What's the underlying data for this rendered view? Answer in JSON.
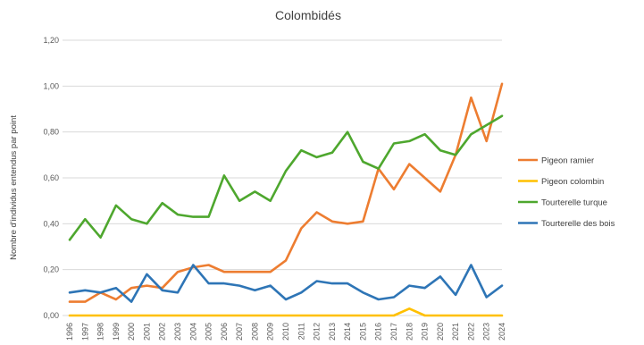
{
  "chart_data": {
    "type": "line",
    "title": "Colombidés",
    "xlabel": "",
    "ylabel": "Nombre d'individus entendus par point",
    "ylim": [
      0,
      1.2
    ],
    "yticks": [
      "0,00",
      "0,20",
      "0,40",
      "0,60",
      "0,80",
      "1,00",
      "1,20"
    ],
    "grid": true,
    "legend_position": "right",
    "x": [
      "1996",
      "1997",
      "1998",
      "1999",
      "2000",
      "2001",
      "2002",
      "2003",
      "2004",
      "2005",
      "2006",
      "2007",
      "2008",
      "2009",
      "2010",
      "2011",
      "2012",
      "2013",
      "2014",
      "2015",
      "2016",
      "2017",
      "2018",
      "2019",
      "2020",
      "2021",
      "2022",
      "2023",
      "2024"
    ],
    "series": [
      {
        "name": "Pigeon ramier",
        "color": "#ed7d31",
        "values": [
          0.06,
          0.06,
          0.1,
          0.07,
          0.12,
          0.13,
          0.12,
          0.19,
          0.21,
          0.22,
          0.19,
          0.19,
          0.19,
          0.19,
          0.24,
          0.38,
          0.45,
          0.41,
          0.4,
          0.41,
          0.64,
          0.55,
          0.66,
          0.6,
          0.54,
          0.7,
          0.95,
          0.76,
          1.01
        ]
      },
      {
        "name": "Pigeon colombin",
        "color": "#ffc000",
        "values": [
          0,
          0,
          0,
          0,
          0,
          0,
          0,
          0,
          0,
          0,
          0,
          0,
          0,
          0,
          0,
          0,
          0,
          0,
          0,
          0,
          0,
          0,
          0.03,
          0,
          0,
          0,
          0,
          0,
          0
        ]
      },
      {
        "name": "Tourterelle turque",
        "color": "#4ea72e",
        "values": [
          0.33,
          0.42,
          0.34,
          0.48,
          0.42,
          0.4,
          0.49,
          0.44,
          0.43,
          0.43,
          0.61,
          0.5,
          0.54,
          0.5,
          0.63,
          0.72,
          0.69,
          0.71,
          0.8,
          0.67,
          0.64,
          0.75,
          0.76,
          0.79,
          0.72,
          0.7,
          0.79,
          0.83,
          0.87
        ]
      },
      {
        "name": "Tourterelle des bois",
        "color": "#2e75b6",
        "values": [
          0.1,
          0.11,
          0.1,
          0.12,
          0.06,
          0.18,
          0.11,
          0.1,
          0.22,
          0.14,
          0.14,
          0.13,
          0.11,
          0.13,
          0.07,
          0.1,
          0.15,
          0.14,
          0.14,
          0.1,
          0.07,
          0.08,
          0.13,
          0.12,
          0.17,
          0.09,
          0.22,
          0.08,
          0.13
        ]
      }
    ]
  }
}
